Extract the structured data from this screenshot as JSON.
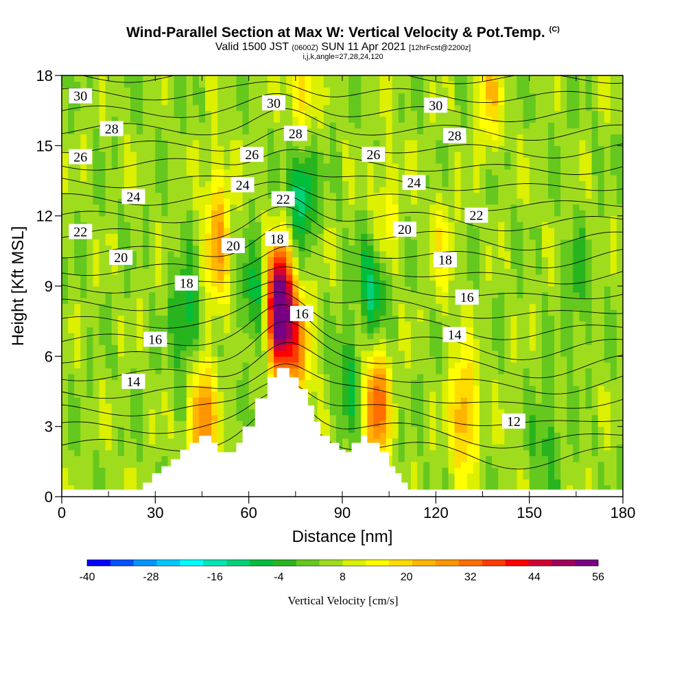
{
  "header": {
    "title": "Wind-Parallel Section at Max W: Vertical Velocity & Pot.Temp.",
    "title_unit": "(C)",
    "valid_prefix": "Valid 1500 JST",
    "valid_utc": "(0600Z)",
    "valid_date": "SUN 11 Apr 2021",
    "forecast": "[12hrFcst@2200z]",
    "params": "i,j,k,angle=27,28,24,120"
  },
  "chart_data": {
    "type": "heatmap",
    "xlabel": "Distance [nm]",
    "ylabel": "Height [Kft MSL]",
    "xlim": [
      0,
      180
    ],
    "ylim": [
      0,
      18
    ],
    "xticks": [
      0,
      30,
      60,
      90,
      120,
      150,
      180
    ],
    "yticks": [
      0,
      3,
      6,
      9,
      12,
      15,
      18
    ],
    "colorbar": {
      "label": "Vertical Velocity [cm/s]",
      "tick_labels": [
        "-40",
        "-28",
        "-16",
        "-4",
        "8",
        "20",
        "32",
        "44",
        "56"
      ],
      "colors": [
        "#0000ff",
        "#0050ff",
        "#0096ff",
        "#00c8ff",
        "#00ffff",
        "#00e6b4",
        "#00d278",
        "#00be3c",
        "#28b41e",
        "#64c81e",
        "#a0dc1e",
        "#dcf000",
        "#ffff00",
        "#ffdc00",
        "#ffb400",
        "#ff9600",
        "#ff6e00",
        "#ff3c00",
        "#ff0000",
        "#d20032",
        "#a0005a",
        "#780082"
      ]
    },
    "terrain": {
      "x": [
        0,
        26,
        26,
        29,
        29,
        32,
        32,
        35,
        35,
        38,
        38,
        41,
        41,
        44,
        44,
        48,
        48,
        50,
        50,
        56,
        56,
        58,
        58,
        62,
        62,
        66,
        66,
        69,
        69,
        73,
        73,
        76,
        76,
        79,
        79,
        81,
        81,
        83,
        83,
        86,
        86,
        89,
        89,
        91,
        91,
        93,
        93,
        96,
        96,
        98,
        98,
        102,
        102,
        105,
        105,
        107,
        107,
        109,
        109,
        111,
        111,
        113,
        113,
        115,
        115,
        118,
        118,
        121,
        121,
        124,
        124,
        180
      ],
      "y": [
        0.3,
        0.3,
        0.6,
        0.6,
        1.0,
        1.0,
        1.3,
        1.3,
        1.6,
        1.6,
        2.0,
        2.0,
        2.3,
        2.3,
        2.6,
        2.6,
        2.3,
        2.3,
        1.9,
        1.9,
        2.3,
        2.3,
        3.0,
        3.0,
        4.2,
        4.2,
        5.1,
        5.1,
        5.5,
        5.5,
        5.1,
        5.1,
        4.6,
        4.6,
        3.9,
        3.9,
        3.2,
        3.2,
        2.6,
        2.6,
        2.3,
        2.3,
        2.0,
        2.0,
        1.9,
        1.9,
        2.3,
        2.3,
        2.6,
        2.6,
        2.3,
        2.3,
        1.9,
        1.9,
        1.3,
        1.3,
        1.0,
        1.0,
        0.6,
        0.6,
        0.3,
        0.3,
        0.3,
        0.3,
        0.3,
        0.3,
        0.3,
        0.3,
        0.3,
        0.3,
        0.3,
        0.3
      ]
    },
    "updrafts": [
      {
        "x": 70,
        "y": 8.0,
        "peak": 56
      },
      {
        "x": 45,
        "y": 3.2,
        "peak": 24
      },
      {
        "x": 101,
        "y": 4.0,
        "peak": 26
      },
      {
        "x": 129,
        "y": 3.5,
        "peak": 20
      },
      {
        "x": 76,
        "y": 6.3,
        "peak": 18
      },
      {
        "x": 77,
        "y": 17.3,
        "peak": 14
      },
      {
        "x": 137,
        "y": 17.3,
        "peak": 13
      },
      {
        "x": 104,
        "y": 12.0,
        "peak": 9
      },
      {
        "x": 50,
        "y": 12.5,
        "peak": 10
      },
      {
        "x": 122,
        "y": 10.5,
        "peak": 8
      },
      {
        "x": 50,
        "y": 10.0,
        "peak": 12
      }
    ],
    "downdrafts": [
      {
        "x": 77,
        "y": 13.2,
        "peak": -18
      },
      {
        "x": 40,
        "y": 7.5,
        "peak": -14
      },
      {
        "x": 100,
        "y": 8.9,
        "peak": -16
      },
      {
        "x": 62,
        "y": 8.5,
        "peak": -12
      },
      {
        "x": 155,
        "y": 2.5,
        "peak": -8
      },
      {
        "x": 92,
        "y": 5.0,
        "peak": -10
      },
      {
        "x": 165,
        "y": 9.0,
        "peak": -7
      }
    ],
    "theta_labels": [
      {
        "text": "30",
        "x": 6,
        "y": 17.1
      },
      {
        "text": "28",
        "x": 16,
        "y": 15.7
      },
      {
        "text": "26",
        "x": 6,
        "y": 14.5
      },
      {
        "text": "24",
        "x": 23,
        "y": 12.8
      },
      {
        "text": "22",
        "x": 6,
        "y": 11.3
      },
      {
        "text": "20",
        "x": 19,
        "y": 10.2
      },
      {
        "text": "18",
        "x": 40,
        "y": 9.1
      },
      {
        "text": "16",
        "x": 30,
        "y": 6.7
      },
      {
        "text": "14",
        "x": 23,
        "y": 4.9
      },
      {
        "text": "26",
        "x": 61,
        "y": 14.6
      },
      {
        "text": "24",
        "x": 58,
        "y": 13.3
      },
      {
        "text": "20",
        "x": 55,
        "y": 10.7
      },
      {
        "text": "18",
        "x": 69,
        "y": 11.0
      },
      {
        "text": "16",
        "x": 77,
        "y": 7.8
      },
      {
        "text": "30",
        "x": 68,
        "y": 16.8
      },
      {
        "text": "28",
        "x": 75,
        "y": 15.5
      },
      {
        "text": "22",
        "x": 71,
        "y": 12.7
      },
      {
        "text": "26",
        "x": 100,
        "y": 14.6
      },
      {
        "text": "30",
        "x": 120,
        "y": 16.7
      },
      {
        "text": "28",
        "x": 126,
        "y": 15.4
      },
      {
        "text": "24",
        "x": 113,
        "y": 13.4
      },
      {
        "text": "22",
        "x": 133,
        "y": 12.0
      },
      {
        "text": "20",
        "x": 110,
        "y": 11.4
      },
      {
        "text": "18",
        "x": 123,
        "y": 10.1
      },
      {
        "text": "16",
        "x": 130,
        "y": 8.5
      },
      {
        "text": "14",
        "x": 126,
        "y": 6.9
      },
      {
        "text": "12",
        "x": 145,
        "y": 3.2
      }
    ]
  }
}
